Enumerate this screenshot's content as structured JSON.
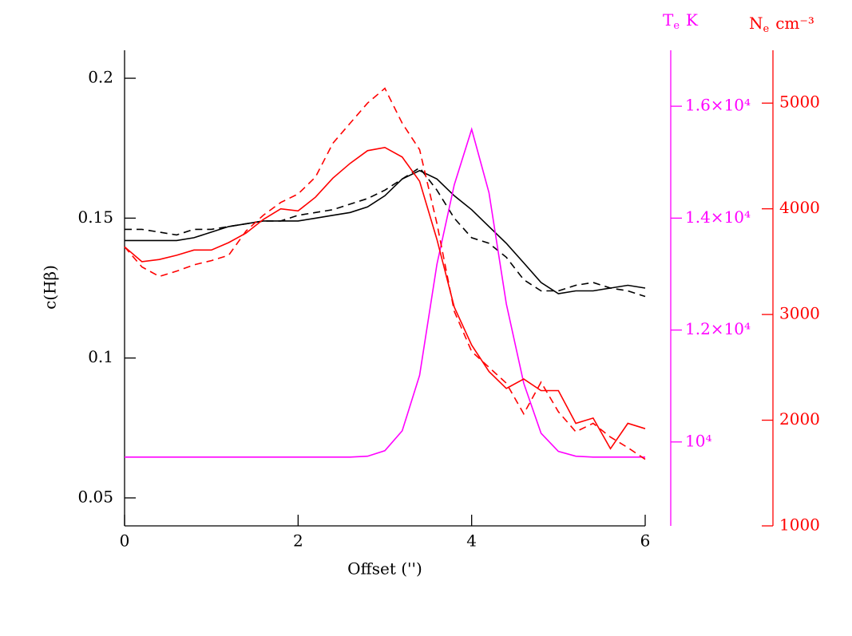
{
  "chart_data": {
    "type": "line",
    "x_label": "Offset ('')",
    "y_label": "c(Hβ)",
    "y2_label": {
      "symbol": "T",
      "subscript": "e",
      "unit": "K"
    },
    "y3_label": {
      "symbol": "N",
      "subscript": "e",
      "unit": "cm⁻³"
    },
    "x": [
      0,
      0.2,
      0.4,
      0.6,
      0.8,
      1.0,
      1.2,
      1.4,
      1.6,
      1.8,
      2.0,
      2.2,
      2.4,
      2.6,
      2.8,
      3.0,
      3.2,
      3.4,
      3.6,
      3.8,
      4.0,
      4.2,
      4.4,
      4.6,
      4.8,
      5.0,
      5.2,
      5.4,
      5.6,
      5.8,
      6.0
    ],
    "xlim": [
      0,
      6
    ],
    "xticks": [
      0,
      2,
      4,
      6
    ],
    "ylim": [
      0.04,
      0.21
    ],
    "yticks": [
      0.05,
      0.1,
      0.15,
      0.2
    ],
    "y2lim": [
      8500,
      17000
    ],
    "y2ticks": [
      {
        "value": 10000,
        "label": "10⁴"
      },
      {
        "value": 12000,
        "label": "1.2×10⁴"
      },
      {
        "value": 14000,
        "label": "1.4×10⁴"
      },
      {
        "value": 16000,
        "label": "1.6×10⁴"
      }
    ],
    "y2color": "#ff00ff",
    "y3lim": [
      1000,
      5500
    ],
    "y3ticks": [
      1000,
      2000,
      3000,
      4000,
      5000
    ],
    "y3color": "#ff0000",
    "series": [
      {
        "color": "#000000",
        "dashed": false,
        "axis": "y",
        "values": [
          0.142,
          0.142,
          0.142,
          0.142,
          0.143,
          0.145,
          0.147,
          0.148,
          0.149,
          0.149,
          0.149,
          0.15,
          0.151,
          0.152,
          0.154,
          0.158,
          0.164,
          0.167,
          0.164,
          0.158,
          0.153,
          0.147,
          0.141,
          0.134,
          0.127,
          0.123,
          0.124,
          0.124,
          0.125,
          0.126,
          0.125
        ]
      },
      {
        "color": "#000000",
        "dashed": true,
        "axis": "y",
        "values": [
          0.146,
          0.146,
          0.145,
          0.144,
          0.146,
          0.146,
          0.147,
          0.148,
          0.149,
          0.149,
          0.151,
          0.152,
          0.153,
          0.155,
          0.157,
          0.16,
          0.164,
          0.168,
          0.16,
          0.15,
          0.143,
          0.141,
          0.136,
          0.128,
          0.124,
          0.124,
          0.126,
          0.127,
          0.125,
          0.124,
          0.122
        ]
      },
      {
        "color": "#ff00ff",
        "dashed": false,
        "axis": "y2",
        "values": [
          9730,
          9730,
          9730,
          9730,
          9730,
          9730,
          9730,
          9730,
          9730,
          9730,
          9730,
          9730,
          9730,
          9730,
          9745,
          9844,
          10199,
          11191,
          13177,
          14595,
          15588,
          14454,
          12468,
          11050,
          10156,
          9830,
          9745,
          9730,
          9730,
          9730,
          9730
        ]
      },
      {
        "color": "#ff0000",
        "dashed": false,
        "axis": "y3",
        "values": [
          3640,
          3500,
          3520,
          3560,
          3610,
          3610,
          3680,
          3770,
          3900,
          4000,
          3980,
          4110,
          4290,
          4430,
          4550,
          4580,
          4490,
          4260,
          3710,
          3070,
          2710,
          2460,
          2300,
          2390,
          2280,
          2280,
          1970,
          2020,
          1730,
          1970,
          1920
        ]
      },
      {
        "color": "#ff0000",
        "dashed": true,
        "axis": "y3",
        "values": [
          3640,
          3450,
          3360,
          3410,
          3470,
          3510,
          3560,
          3790,
          3940,
          4060,
          4140,
          4300,
          4620,
          4810,
          5000,
          5140,
          4810,
          4560,
          3860,
          3030,
          2650,
          2500,
          2350,
          2060,
          2360,
          2080,
          1890,
          1970,
          1840,
          1740,
          1630
        ]
      }
    ]
  }
}
